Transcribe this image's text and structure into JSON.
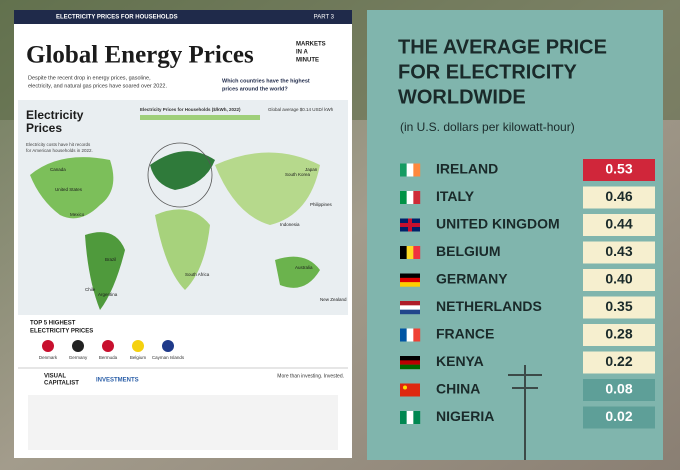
{
  "infographic": {
    "header": {
      "series": "ELECTRICITY PRICES FOR HOUSEHOLDS",
      "part": "PART 3"
    },
    "title": "Global Energy Prices",
    "brand": [
      "MARKETS",
      "IN A",
      "MINUTE"
    ],
    "intro": [
      "Despite the recent drop in energy prices, gasoline,",
      "electricity, and natural gas prices have soared over 2022."
    ],
    "question": [
      "Which countries have the highest",
      "prices around the world?"
    ],
    "section_title": [
      "Electricity",
      "Prices"
    ],
    "section_note": [
      "Electricity costs have hit records",
      "for American households in 2022."
    ],
    "map_title": "Electricity Prices for Households ($/kWh, 2022)",
    "global_average": "Global average $0.14 USD/ kWh",
    "map_labels": [
      "Canada",
      "United States",
      "Mexico",
      "Brazil",
      "Argentina",
      "Chile",
      "South Africa",
      "Indonesia",
      "Australia",
      "New Zealand",
      "Japan",
      "South Korea",
      "Philippines"
    ],
    "top5_title": [
      "TOP 5 HIGHEST",
      "ELECTRICITY PRICES"
    ],
    "top5": [
      "Denmark",
      "Germany",
      "Bermuda",
      "Belgium",
      "Cayman Islands"
    ],
    "footer": [
      "VISUAL",
      "CAPITALIST",
      "INVESTMENTS",
      "More than investing. Invested."
    ]
  },
  "table": {
    "title": [
      "THE AVERAGE PRICE",
      "FOR ELECTRICITY",
      "WORLDWIDE"
    ],
    "subtitle": "(in U.S. dollars per kilowatt-hour)",
    "rows": [
      [
        "IRELAND",
        "0.53"
      ],
      [
        "ITALY",
        "0.46"
      ],
      [
        "UNITED KINGDOM",
        "0.44"
      ],
      [
        "BELGIUM",
        "0.43"
      ],
      [
        "GERMANY",
        "0.40"
      ],
      [
        "NETHERLANDS",
        "0.35"
      ],
      [
        "FRANCE",
        "0.28"
      ],
      [
        "KENYA",
        "0.22"
      ],
      [
        "CHINA",
        "0.08"
      ],
      [
        "NIGERIA",
        "0.02"
      ]
    ]
  }
}
